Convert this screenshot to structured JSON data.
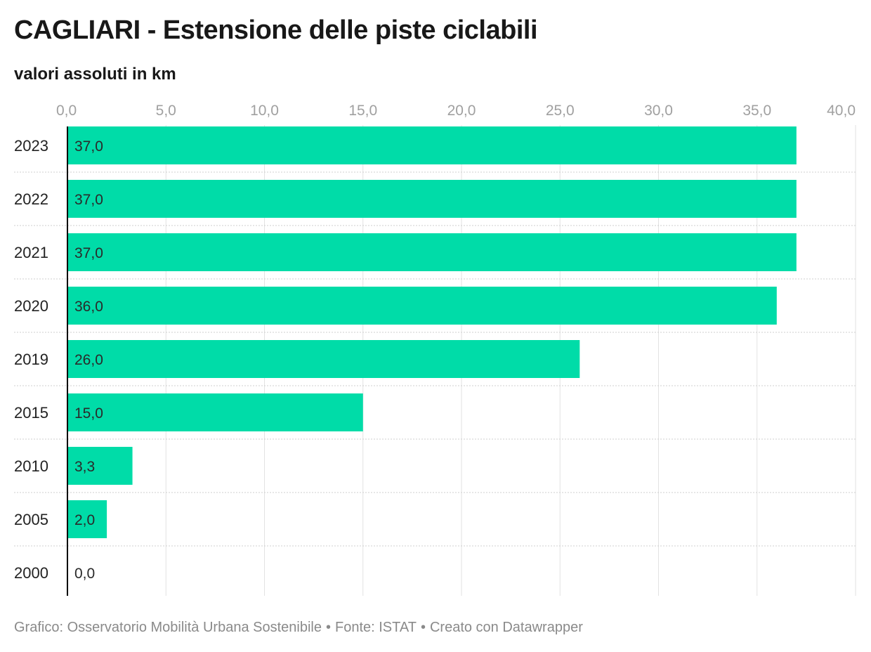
{
  "chart_data": {
    "type": "bar",
    "orientation": "horizontal",
    "title": "CAGLIARI - Estensione delle piste ciclabili",
    "subtitle": "valori assoluti in km",
    "categories": [
      "2023",
      "2022",
      "2021",
      "2020",
      "2019",
      "2015",
      "2010",
      "2005",
      "2000"
    ],
    "values": [
      37.0,
      37.0,
      37.0,
      36.0,
      26.0,
      15.0,
      3.3,
      2.0,
      0.0
    ],
    "value_labels": [
      "37,0",
      "37,0",
      "37,0",
      "36,0",
      "26,0",
      "15,0",
      "3,3",
      "2,0",
      "0,0"
    ],
    "xlim": [
      0,
      40
    ],
    "x_ticks": [
      0,
      5,
      10,
      15,
      20,
      25,
      30,
      35,
      40
    ],
    "x_tick_labels": [
      "0,0",
      "5,0",
      "10,0",
      "15,0",
      "20,0",
      "25,0",
      "30,0",
      "35,0",
      "40,0"
    ],
    "x_axis_position": "top",
    "grid": true,
    "bar_color": "#00dca8"
  },
  "footer": {
    "graphic": "Grafico: Osservatorio Mobilità Urbana Sostenibile",
    "source": "Fonte: ISTAT",
    "made_with": "Creato con Datawrapper",
    "separator": "•"
  }
}
